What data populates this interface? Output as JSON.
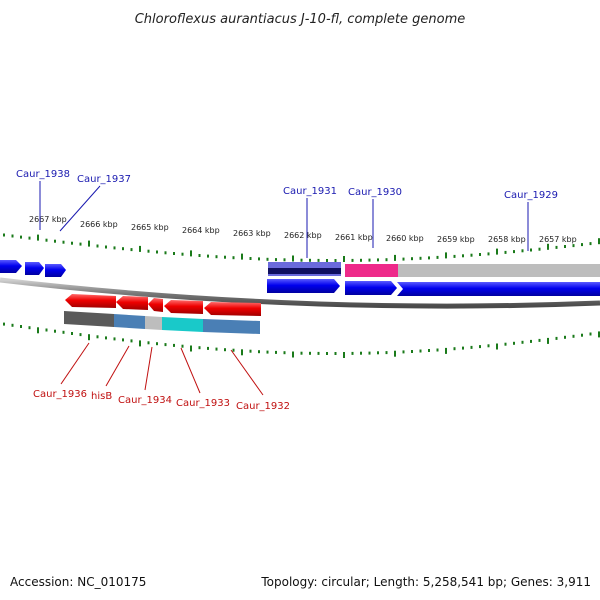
{
  "title": "Chloroflexus aurantiacus J-10-fl, complete genome",
  "footer": {
    "accession": "Accession: NC_010175",
    "summary": "Topology: circular; Length: 5,258,541 bp; Genes: 3,911"
  },
  "ticks": [
    {
      "label": "2667 kbp",
      "major": true
    },
    {
      "label": "2666 kbp",
      "major": true
    },
    {
      "label": "2665 kbp",
      "major": true
    },
    {
      "label": "2664 kbp",
      "major": true
    },
    {
      "label": "2663 kbp",
      "major": true
    },
    {
      "label": "2662 kbp",
      "major": true
    },
    {
      "label": "2661 kbp",
      "major": true
    },
    {
      "label": "2660 kbp",
      "major": true
    },
    {
      "label": "2659 kbp",
      "major": true
    },
    {
      "label": "2658 kbp",
      "major": true
    },
    {
      "label": "2657 kbp",
      "major": true
    }
  ],
  "genes_top": [
    {
      "label": "Caur_1938"
    },
    {
      "label": "Caur_1937"
    },
    {
      "label": "Caur_1931"
    },
    {
      "label": "Caur_1930"
    },
    {
      "label": "Caur_1929"
    }
  ],
  "genes_bottom": [
    {
      "label": "Caur_1936"
    },
    {
      "label": "hisB"
    },
    {
      "label": "Caur_1934"
    },
    {
      "label": "Caur_1933"
    },
    {
      "label": "Caur_1932"
    }
  ],
  "colors": {
    "forward_gene": "#0000ee",
    "reverse_gene": "#ee0000",
    "backbone": "#888888",
    "tick": "#1a7a1a",
    "label_top": "#1a1ab0",
    "label_bottom": "#c01010",
    "cog_gray": "#bdbdbd",
    "cog_pink": "#ee2a8a",
    "cog_navy": "#101060",
    "cog_steel": "#4a7fb5",
    "cog_cyan": "#19c9c9",
    "cog_darkgray": "#5a5a5a",
    "cog_periwinkle": "#6a6adc"
  }
}
